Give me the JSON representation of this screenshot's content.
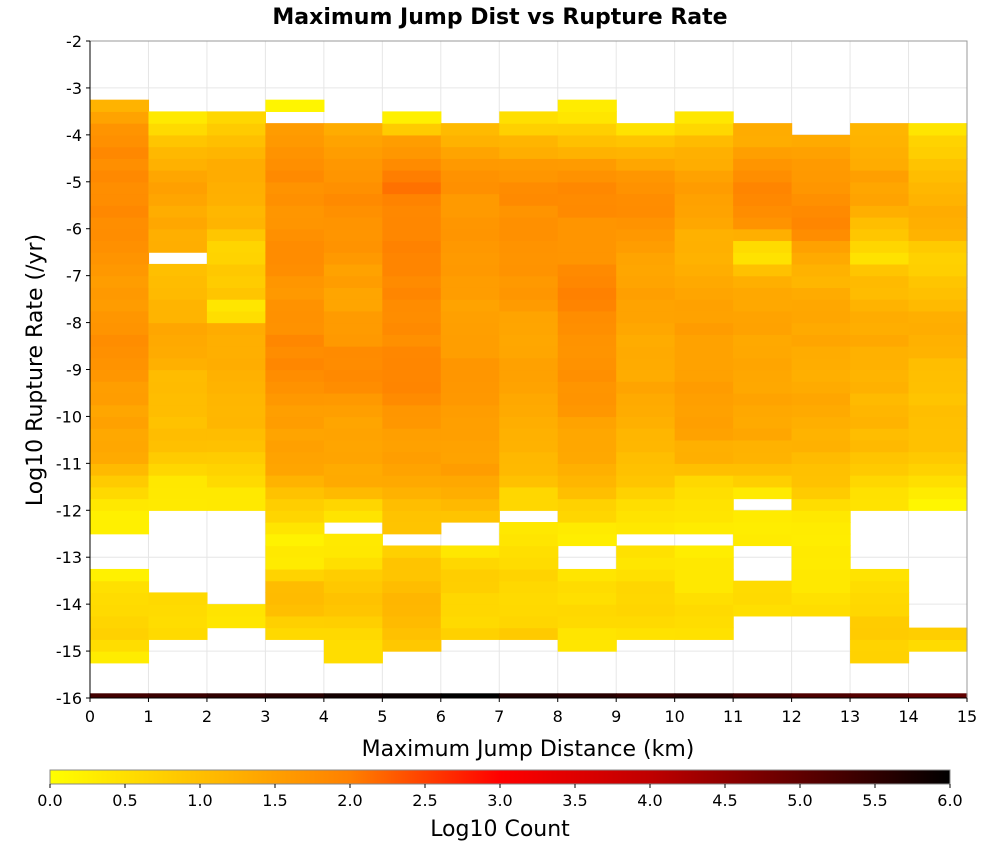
{
  "chart_data": {
    "type": "heatmap",
    "title": "Maximum Jump Dist vs Rupture Rate",
    "xlabel": "Maximum Jump Distance (km)",
    "ylabel": "Log10 Rupture Rate (/yr)",
    "xlim": [
      0,
      15
    ],
    "ylim": [
      -16,
      -2
    ],
    "x_ticks": [
      "0",
      "1",
      "2",
      "3",
      "4",
      "5",
      "6",
      "7",
      "8",
      "9",
      "10",
      "11",
      "12",
      "13",
      "14",
      "15"
    ],
    "y_ticks": [
      "-2",
      "-3",
      "-4",
      "-5",
      "-6",
      "-7",
      "-8",
      "-9",
      "-10",
      "-11",
      "-12",
      "-13",
      "-14",
      "-15",
      "-16"
    ],
    "x_bin_width": 1,
    "y_bin_height": 0.25,
    "colorbar": {
      "label": "Log10 Count",
      "min": 0,
      "max": 6,
      "ticks": [
        "0.0",
        "0.5",
        "1.0",
        "1.5",
        "2.0",
        "2.5",
        "3.0",
        "3.5",
        "4.0",
        "4.5",
        "5.0",
        "5.5",
        "6.0"
      ],
      "stops": [
        {
          "v": 0.0,
          "color": "#ffff00"
        },
        {
          "v": 1.0,
          "color": "#ffbf00"
        },
        {
          "v": 2.0,
          "color": "#ff8000"
        },
        {
          "v": 3.0,
          "color": "#ff0000"
        },
        {
          "v": 4.0,
          "color": "#bf0000"
        },
        {
          "v": 5.0,
          "color": "#600000"
        },
        {
          "v": 6.0,
          "color": "#000000"
        }
      ]
    },
    "grid": true,
    "columns": [
      {
        "x": 0,
        "y_range": [
          -15.25,
          -3.25
        ],
        "profile": [
          [
            -15.25,
            0.2
          ],
          [
            -14.5,
            0.7
          ],
          [
            -13.75,
            0.6
          ],
          [
            -13.25,
            0.2
          ],
          [
            -12.5,
            null
          ],
          [
            -12.25,
            0.2
          ],
          [
            -11.75,
            0.5
          ],
          [
            -11,
            1.2
          ],
          [
            -9,
            1.7
          ],
          [
            -7,
            1.6
          ],
          [
            -5,
            1.9
          ],
          [
            -4,
            1.7
          ],
          [
            -3.5,
            1.2
          ],
          [
            -3.25,
            1.0
          ]
        ],
        "gaps": [
          [
            -13.25,
            -12.5
          ]
        ]
      },
      {
        "x": 1,
        "y_range": [
          -14.75,
          -3.5
        ],
        "profile": [
          [
            -14.75,
            0.5
          ],
          [
            -14.0,
            0.7
          ],
          [
            -13.75,
            0.7
          ],
          [
            -12.0,
            0.3
          ],
          [
            -11.5,
            0.4
          ],
          [
            -10.5,
            1.0
          ],
          [
            -8,
            1.3
          ],
          [
            -6.75,
            1.0
          ],
          [
            -6.5,
            null
          ],
          [
            -6.25,
            1.2
          ],
          [
            -5,
            1.6
          ],
          [
            -4,
            0.8
          ],
          [
            -3.75,
            0.2
          ],
          [
            -3.5,
            0.3
          ]
        ],
        "gaps": [
          [
            -13.75,
            -12.0
          ],
          [
            -6.75,
            -6.5
          ]
        ]
      },
      {
        "x": 2,
        "y_range": [
          -14.5,
          -3.5
        ],
        "profile": [
          [
            -14.5,
            0.5
          ],
          [
            -14.0,
            0.5
          ],
          [
            -12.0,
            null
          ],
          [
            -11.75,
            0.4
          ],
          [
            -10,
            1.2
          ],
          [
            -8,
            1.2
          ],
          [
            -7.75,
            0.0
          ],
          [
            -7.5,
            1.0
          ],
          [
            -6.25,
            0.5
          ],
          [
            -6,
            1.1
          ],
          [
            -5,
            1.4
          ],
          [
            -4,
            0.9
          ],
          [
            -3.75,
            0.5
          ],
          [
            -3.5,
            0.8
          ]
        ],
        "gaps": [
          [
            -14.0,
            -12.0
          ]
        ]
      },
      {
        "x": 3,
        "y_range": [
          -14.75,
          -3.25
        ],
        "profile": [
          [
            -14.75,
            0.5
          ],
          [
            -14.0,
            1.1
          ],
          [
            -13.5,
            1.0
          ],
          [
            -13.25,
            0.2
          ],
          [
            -12.5,
            0.3
          ],
          [
            -12,
            0.8
          ],
          [
            -11,
            1.4
          ],
          [
            -9,
            1.8
          ],
          [
            -7,
            1.7
          ],
          [
            -5,
            1.8
          ],
          [
            -4,
            1.5
          ],
          [
            -3.5,
            null
          ],
          [
            -3.25,
            0.2
          ]
        ],
        "gaps": [
          [
            -3.75,
            -3.5
          ]
        ]
      },
      {
        "x": 4,
        "y_range": [
          -15.25,
          -3.75
        ],
        "profile": [
          [
            -15.25,
            0.4
          ],
          [
            -14.75,
            0.6
          ],
          [
            -14,
            1.0
          ],
          [
            -13.25,
            0.6
          ],
          [
            -13,
            0.3
          ],
          [
            -12.5,
            0.4
          ],
          [
            -12.25,
            null
          ],
          [
            -12,
            0.5
          ],
          [
            -11.5,
            1.2
          ],
          [
            -9,
            1.8
          ],
          [
            -7,
            1.4
          ],
          [
            -5.5,
            1.9
          ],
          [
            -5,
            1.7
          ],
          [
            -3.75,
            1.3
          ]
        ],
        "gaps": [
          [
            -14.75,
            -14.75
          ],
          [
            -12.5,
            -12.25
          ]
        ]
      },
      {
        "x": 5,
        "y_range": [
          -15.0,
          -3.5
        ],
        "profile": [
          [
            -15.0,
            0.9
          ],
          [
            -14.0,
            1.2
          ],
          [
            -13.25,
            0.8
          ],
          [
            -12.75,
            null
          ],
          [
            -12.5,
            0.9
          ],
          [
            -12,
            1.0
          ],
          [
            -11,
            1.5
          ],
          [
            -9,
            1.9
          ],
          [
            -7,
            1.8
          ],
          [
            -5.5,
            2.0
          ],
          [
            -5,
            2.0
          ],
          [
            -4,
            1.4
          ],
          [
            -3.75,
            0.3
          ],
          [
            -3.5,
            0.2
          ]
        ],
        "gaps": [
          [
            -12.75,
            -12.5
          ]
        ]
      },
      {
        "x": 6,
        "y_range": [
          -14.75,
          -3.75
        ],
        "profile": [
          [
            -14.75,
            0.8
          ],
          [
            -14,
            0.5
          ],
          [
            -13.5,
            0.7
          ],
          [
            -13.0,
            0.5
          ],
          [
            -12.75,
            null
          ],
          [
            -12.5,
            null
          ],
          [
            -12.25,
            0.9
          ],
          [
            -11,
            1.5
          ],
          [
            -9,
            1.6
          ],
          [
            -7,
            1.5
          ],
          [
            -6,
            1.7
          ],
          [
            -5,
            1.7
          ],
          [
            -4,
            1.2
          ],
          [
            -3.75,
            1.0
          ]
        ],
        "gaps": [
          [
            -12.75,
            -12.25
          ]
        ]
      },
      {
        "x": 7,
        "y_range": [
          -14.75,
          -3.5
        ],
        "profile": [
          [
            -14.75,
            1.0
          ],
          [
            -14.0,
            0.5
          ],
          [
            -13.25,
            0.6
          ],
          [
            -12.25,
            0.4
          ],
          [
            -12.0,
            null
          ],
          [
            -11.75,
            0.5
          ],
          [
            -11,
            1.2
          ],
          [
            -9,
            1.4
          ],
          [
            -7,
            1.6
          ],
          [
            -6,
            1.8
          ],
          [
            -5,
            1.7
          ],
          [
            -4,
            1.2
          ],
          [
            -3.75,
            0.5
          ],
          [
            -3.5,
            0.6
          ]
        ],
        "gaps": [
          [
            -12.25,
            -12.0
          ]
        ]
      },
      {
        "x": 8,
        "y_range": [
          -15.0,
          -3.25
        ],
        "profile": [
          [
            -15.0,
            0.5
          ],
          [
            -14.0,
            0.5
          ],
          [
            -13.25,
            0.5
          ],
          [
            -12.75,
            null
          ],
          [
            -12.5,
            0.3
          ],
          [
            -12.0,
            0.6
          ],
          [
            -11,
            1.4
          ],
          [
            -9,
            1.7
          ],
          [
            -7.5,
            1.9
          ],
          [
            -6,
            1.7
          ],
          [
            -5,
            1.8
          ],
          [
            -4,
            1.0
          ],
          [
            -3.5,
            0.2
          ],
          [
            -3.25,
            0.2
          ]
        ],
        "gaps": [
          [
            -13.25,
            -12.75
          ]
        ]
      },
      {
        "x": 9,
        "y_range": [
          -14.75,
          -3.75
        ],
        "profile": [
          [
            -14.75,
            0.4
          ],
          [
            -14,
            0.6
          ],
          [
            -13.25,
            0.5
          ],
          [
            -12.75,
            null
          ],
          [
            -12.5,
            0.2
          ],
          [
            -12,
            0.4
          ],
          [
            -11,
            1.1
          ],
          [
            -9,
            1.4
          ],
          [
            -7,
            1.4
          ],
          [
            -6,
            1.7
          ],
          [
            -5,
            1.7
          ],
          [
            -4,
            0.9
          ],
          [
            -3.75,
            0.1
          ]
        ],
        "gaps": [
          [
            -12.75,
            -12.5
          ]
        ]
      },
      {
        "x": 10,
        "y_range": [
          -14.75,
          -3.5
        ],
        "profile": [
          [
            -14.75,
            0.4
          ],
          [
            -14,
            0.5
          ],
          [
            -13.0,
            0.4
          ],
          [
            -12.75,
            null
          ],
          [
            -12.5,
            0.2
          ],
          [
            -12,
            0.4
          ],
          [
            -11.5,
            0.5
          ],
          [
            -11,
            1.3
          ],
          [
            -9,
            1.6
          ],
          [
            -7,
            1.3
          ],
          [
            -6,
            1.3
          ],
          [
            -5,
            1.5
          ],
          [
            -4,
            1.1
          ],
          [
            -3.75,
            0.3
          ],
          [
            -3.5,
            0.3
          ]
        ],
        "gaps": [
          [
            -12.75,
            -12.5
          ]
        ]
      },
      {
        "x": 11,
        "y_range": [
          -14.25,
          -3.75
        ],
        "profile": [
          [
            -14.25,
            0.4
          ],
          [
            -13.75,
            0.6
          ],
          [
            -13.5,
            null
          ],
          [
            -12.75,
            null
          ],
          [
            -12.5,
            0.2
          ],
          [
            -12.0,
            null
          ],
          [
            -11.75,
            0.3
          ],
          [
            -11,
            1.2
          ],
          [
            -9,
            1.5
          ],
          [
            -7,
            1.3
          ],
          [
            -6.5,
            0.3
          ],
          [
            -6,
            1.6
          ],
          [
            -5,
            1.9
          ],
          [
            -4,
            1.3
          ],
          [
            -3.75,
            1.3
          ]
        ],
        "gaps": [
          [
            -13.5,
            -12.75
          ],
          [
            -12.0,
            -11.75
          ]
        ]
      },
      {
        "x": 12,
        "y_range": [
          -14.25,
          -4.0
        ],
        "profile": [
          [
            -14.25,
            0.4
          ],
          [
            -13.75,
            0.5
          ],
          [
            -13.0,
            0.3
          ],
          [
            -12.5,
            0.2
          ],
          [
            -12.0,
            0.3
          ],
          [
            -11.5,
            1.0
          ],
          [
            -9,
            1.4
          ],
          [
            -7,
            1.2
          ],
          [
            -6.5,
            1.5
          ],
          [
            -6.0,
            1.8
          ],
          [
            -5,
            1.7
          ],
          [
            -4,
            1.4
          ]
        ],
        "gaps": []
      },
      {
        "x": 13,
        "y_range": [
          -15.25,
          -3.75
        ],
        "profile": [
          [
            -15.25,
            0.6
          ],
          [
            -14.75,
            0.7
          ],
          [
            -14,
            0.7
          ],
          [
            -13.25,
            0.5
          ],
          [
            -12.0,
            null
          ],
          [
            -11.75,
            0.5
          ],
          [
            -11,
            0.9
          ],
          [
            -9,
            1.3
          ],
          [
            -7,
            1.1
          ],
          [
            -6.5,
            0.4
          ],
          [
            -6,
            0.9
          ],
          [
            -5,
            1.6
          ],
          [
            -4,
            1.1
          ],
          [
            -3.75,
            1.0
          ]
        ],
        "gaps": [
          [
            -13.25,
            -12.0
          ]
        ]
      },
      {
        "x": 14,
        "y_range": [
          -15.0,
          -3.75
        ],
        "profile": [
          [
            -15.0,
            0.5
          ],
          [
            -14.75,
            0.6
          ],
          [
            -14.5,
            0.8
          ],
          [
            -12.0,
            null
          ],
          [
            -11.75,
            0.2
          ],
          [
            -11.5,
            0.5
          ],
          [
            -11,
            0.8
          ],
          [
            -9,
            1.1
          ],
          [
            -8,
            1.2
          ],
          [
            -7,
            0.9
          ],
          [
            -6.5,
            0.7
          ],
          [
            -6,
            1.2
          ],
          [
            -5,
            1.2
          ],
          [
            -4,
            0.6
          ],
          [
            -3.75,
            0.2
          ]
        ],
        "gaps": [
          [
            -14.5,
            -12.0
          ]
        ]
      }
    ],
    "bottom_row": {
      "y": [
        -16,
        -15.9
      ],
      "log_count": [
        5.3,
        5.4,
        5.5,
        5.6,
        5.8,
        5.9,
        6.0,
        5.7,
        5.6,
        5.5,
        5.6,
        5.4,
        5.2,
        5.1,
        5.0
      ]
    }
  }
}
